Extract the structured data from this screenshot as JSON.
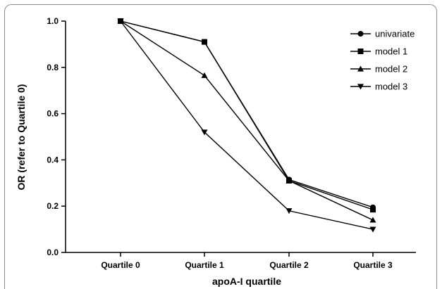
{
  "chart_data": {
    "type": "line",
    "title": "",
    "xlabel": "apoA-I quartile",
    "ylabel": "OR (refer to Quartile 0)",
    "categories": [
      "Quartile 0",
      "Quartile 1",
      "Quartile 2",
      "Quartile 3"
    ],
    "ylim": [
      0.0,
      1.0
    ],
    "yticks": [
      "0.0",
      "0.2",
      "0.4",
      "0.6",
      "0.8",
      "1.0"
    ],
    "legend_position": "top-right",
    "grid": false,
    "series": [
      {
        "name": "univariate",
        "marker": "circle",
        "values": [
          1.0,
          0.91,
          0.315,
          0.195
        ]
      },
      {
        "name": "model 1",
        "marker": "square",
        "values": [
          1.0,
          0.91,
          0.31,
          0.185
        ]
      },
      {
        "name": "model 2",
        "marker": "triangle-up",
        "values": [
          1.0,
          0.765,
          0.31,
          0.14
        ]
      },
      {
        "name": "model 3",
        "marker": "triangle-down",
        "values": [
          1.0,
          0.52,
          0.18,
          0.1
        ]
      }
    ]
  }
}
